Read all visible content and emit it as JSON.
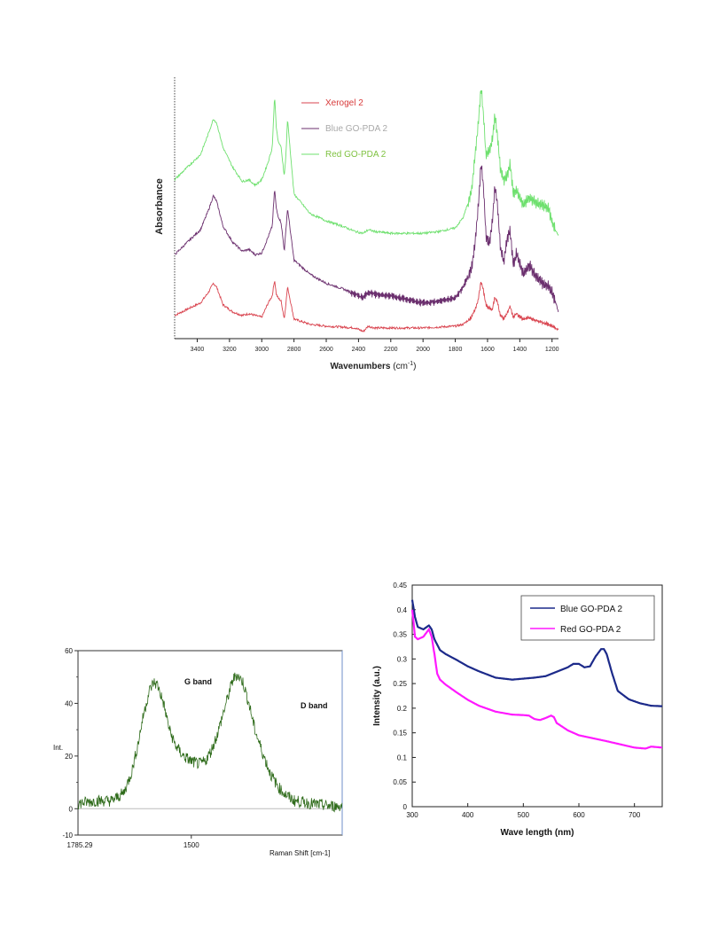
{
  "chart_data": [
    {
      "type": "line",
      "title": "",
      "xlabel": "Wavenumbers (cm⁻¹)",
      "ylabel": "Absorbance",
      "xlim": [
        3540,
        1160
      ],
      "x_reversed": true,
      "xticks": [
        3400,
        3200,
        3000,
        2800,
        2600,
        2400,
        2200,
        2000,
        1800,
        1600,
        1400,
        1200
      ],
      "legend": {
        "position": "top-center",
        "entries": [
          "Xerogel 2",
          "Blue GO-PDA 2",
          "Red GO-PDA 2"
        ]
      },
      "legend_colors": [
        "#d83a3a",
        "#a9a9a9",
        "#7fc241"
      ],
      "y_ticks_shown": false,
      "series": [
        {
          "name": "Xerogel 2",
          "color": "#d9444f",
          "x": [
            3540,
            3450,
            3380,
            3330,
            3300,
            3280,
            3240,
            3180,
            3120,
            3080,
            3040,
            3000,
            2960,
            2935,
            2920,
            2910,
            2900,
            2880,
            2860,
            2850,
            2840,
            2800,
            2700,
            2600,
            2500,
            2420,
            2370,
            2340,
            2300,
            2200,
            2100,
            2000,
            1900,
            1800,
            1750,
            1700,
            1680,
            1660,
            1640,
            1625,
            1610,
            1590,
            1570,
            1555,
            1540,
            1520,
            1500,
            1480,
            1460,
            1440,
            1420,
            1380,
            1340,
            1300,
            1260,
            1220,
            1200,
            1180,
            1160
          ],
          "y": [
            0.1,
            0.14,
            0.17,
            0.23,
            0.28,
            0.26,
            0.16,
            0.12,
            0.1,
            0.11,
            0.1,
            0.09,
            0.17,
            0.21,
            0.3,
            0.22,
            0.2,
            0.18,
            0.08,
            0.17,
            0.26,
            0.08,
            0.05,
            0.04,
            0.035,
            0.03,
            0.01,
            0.04,
            0.03,
            0.03,
            0.03,
            0.03,
            0.035,
            0.04,
            0.05,
            0.09,
            0.13,
            0.18,
            0.29,
            0.24,
            0.16,
            0.14,
            0.13,
            0.2,
            0.18,
            0.1,
            0.08,
            0.11,
            0.15,
            0.09,
            0.11,
            0.08,
            0.09,
            0.07,
            0.06,
            0.05,
            0.04,
            0.03,
            0.02
          ]
        },
        {
          "name": "Blue GO-PDA 2",
          "color": "#6b2f6e",
          "x": [
            3540,
            3450,
            3380,
            3330,
            3300,
            3280,
            3240,
            3180,
            3120,
            3080,
            3040,
            3000,
            2960,
            2935,
            2920,
            2910,
            2900,
            2880,
            2860,
            2850,
            2840,
            2800,
            2700,
            2600,
            2500,
            2420,
            2370,
            2340,
            2300,
            2200,
            2100,
            2000,
            1900,
            1800,
            1750,
            1700,
            1680,
            1660,
            1640,
            1625,
            1610,
            1590,
            1570,
            1555,
            1540,
            1520,
            1500,
            1480,
            1460,
            1440,
            1420,
            1380,
            1340,
            1300,
            1260,
            1220,
            1200,
            1180,
            1160
          ],
          "y": [
            0.44,
            0.52,
            0.58,
            0.69,
            0.77,
            0.74,
            0.6,
            0.51,
            0.46,
            0.47,
            0.44,
            0.45,
            0.54,
            0.6,
            0.81,
            0.7,
            0.66,
            0.62,
            0.46,
            0.58,
            0.7,
            0.41,
            0.33,
            0.28,
            0.25,
            0.22,
            0.2,
            0.23,
            0.22,
            0.21,
            0.19,
            0.17,
            0.18,
            0.2,
            0.26,
            0.36,
            0.48,
            0.68,
            0.95,
            0.82,
            0.55,
            0.5,
            0.62,
            0.82,
            0.74,
            0.48,
            0.4,
            0.52,
            0.58,
            0.38,
            0.45,
            0.33,
            0.38,
            0.32,
            0.28,
            0.26,
            0.23,
            0.18,
            0.12
          ]
        },
        {
          "name": "Red GO-PDA 2",
          "color": "#6ee06e",
          "x": [
            3540,
            3450,
            3380,
            3330,
            3300,
            3280,
            3240,
            3180,
            3120,
            3080,
            3040,
            3000,
            2960,
            2935,
            2920,
            2910,
            2900,
            2880,
            2860,
            2850,
            2840,
            2800,
            2700,
            2600,
            2500,
            2420,
            2370,
            2340,
            2300,
            2200,
            2100,
            2000,
            1900,
            1800,
            1750,
            1700,
            1680,
            1660,
            1640,
            1625,
            1610,
            1590,
            1570,
            1555,
            1540,
            1520,
            1500,
            1480,
            1460,
            1440,
            1420,
            1380,
            1340,
            1300,
            1260,
            1220,
            1200,
            1180,
            1160
          ],
          "y": [
            0.86,
            0.94,
            1.0,
            1.12,
            1.2,
            1.18,
            1.04,
            0.93,
            0.85,
            0.86,
            0.83,
            0.86,
            0.96,
            1.04,
            1.33,
            1.16,
            1.08,
            1.04,
            0.88,
            1.0,
            1.2,
            0.78,
            0.67,
            0.63,
            0.6,
            0.57,
            0.56,
            0.58,
            0.57,
            0.56,
            0.56,
            0.56,
            0.57,
            0.59,
            0.65,
            0.79,
            0.97,
            1.15,
            1.38,
            1.22,
            1.0,
            1.02,
            1.08,
            1.22,
            1.12,
            0.92,
            0.86,
            0.88,
            0.95,
            0.78,
            0.8,
            0.72,
            0.76,
            0.73,
            0.72,
            0.7,
            0.62,
            0.58,
            0.55
          ]
        }
      ]
    },
    {
      "type": "line",
      "title": "",
      "xlabel": "Raman Shift [cm-1]",
      "ylabel": "Int.",
      "xlim": [
        1785.29,
        1120
      ],
      "x_reversed": true,
      "xtick_labels": [
        "1785.29",
        "1500"
      ],
      "ylim": [
        -10,
        60
      ],
      "yticks": [
        -10,
        0,
        20,
        40,
        60
      ],
      "annotations": [
        "G band",
        "D band"
      ],
      "series": [
        {
          "name": "",
          "color": "#2e6b1a",
          "x": [
            1785.29,
            1740,
            1700,
            1670,
            1650,
            1635,
            1620,
            1605,
            1595,
            1585,
            1570,
            1555,
            1540,
            1520,
            1500,
            1480,
            1465,
            1450,
            1435,
            1420,
            1405,
            1395,
            1385,
            1370,
            1355,
            1340,
            1320,
            1300,
            1280,
            1260,
            1240,
            1200,
            1150,
            1120
          ],
          "y": [
            2,
            3,
            3,
            6,
            14,
            24,
            36,
            45,
            48,
            47,
            40,
            30,
            24,
            20,
            18,
            17,
            18,
            22,
            28,
            36,
            44,
            49,
            51,
            48,
            40,
            30,
            21,
            13,
            8,
            5,
            3,
            2,
            1,
            1
          ]
        }
      ]
    },
    {
      "type": "line",
      "title": "",
      "xlabel": "Wave length (nm)",
      "ylabel": "Intensity (a.u.)",
      "xlim": [
        300,
        750
      ],
      "xticks": [
        300,
        400,
        500,
        600,
        700
      ],
      "ylim": [
        0,
        0.45
      ],
      "yticks": [
        0,
        0.05,
        0.1,
        0.15,
        0.2,
        0.25,
        0.3,
        0.35,
        0.4,
        0.45
      ],
      "legend": {
        "position": "top-right",
        "entries": [
          "Blue GO-PDA 2",
          "Red GO-PDA 2"
        ]
      },
      "series": [
        {
          "name": "Blue GO-PDA 2",
          "color": "#1c2a8a",
          "x": [
            300,
            305,
            310,
            320,
            330,
            335,
            340,
            350,
            360,
            380,
            400,
            420,
            450,
            480,
            500,
            520,
            540,
            560,
            580,
            590,
            600,
            610,
            620,
            630,
            640,
            645,
            650,
            660,
            670,
            690,
            710,
            730,
            750
          ],
          "y": [
            0.42,
            0.385,
            0.365,
            0.36,
            0.368,
            0.36,
            0.34,
            0.318,
            0.31,
            0.298,
            0.285,
            0.275,
            0.262,
            0.258,
            0.26,
            0.262,
            0.265,
            0.274,
            0.283,
            0.29,
            0.29,
            0.283,
            0.285,
            0.305,
            0.32,
            0.32,
            0.31,
            0.27,
            0.235,
            0.218,
            0.21,
            0.205,
            0.204
          ]
        },
        {
          "name": "Red GO-PDA 2",
          "color": "#ff19ff",
          "x": [
            300,
            305,
            310,
            320,
            330,
            335,
            340,
            345,
            350,
            360,
            380,
            400,
            420,
            450,
            480,
            500,
            510,
            520,
            530,
            540,
            550,
            555,
            560,
            580,
            600,
            650,
            700,
            720,
            730,
            750
          ],
          "y": [
            0.4,
            0.345,
            0.34,
            0.345,
            0.36,
            0.345,
            0.31,
            0.27,
            0.258,
            0.248,
            0.232,
            0.217,
            0.205,
            0.193,
            0.187,
            0.186,
            0.185,
            0.178,
            0.176,
            0.18,
            0.185,
            0.182,
            0.17,
            0.155,
            0.145,
            0.133,
            0.12,
            0.118,
            0.122,
            0.12
          ]
        }
      ]
    }
  ]
}
